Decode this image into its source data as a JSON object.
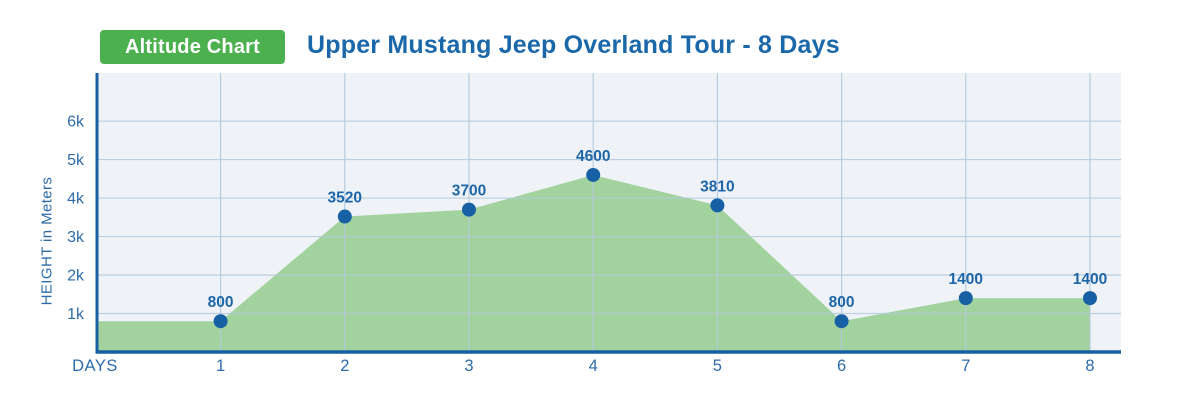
{
  "header": {
    "badge_label": "Altitude Chart",
    "title": "Upper Mustang Jeep Overland Tour - 8 Days"
  },
  "colors": {
    "badge_green": "#4cb04f",
    "title_blue": "#1a67a9",
    "label_blue": "#2d6ca8",
    "axis_blue": "#1760a3",
    "point_blue": "#1760a3",
    "point_label_blue": "#1e66a8",
    "area_green": "#a2d39e",
    "gridline_blue": "#b3c9de",
    "plot_bg": "#eff3f8"
  },
  "chart_data": {
    "type": "area",
    "x": [
      1,
      2,
      3,
      4,
      5,
      6,
      7,
      8
    ],
    "values": [
      800,
      3520,
      3700,
      4600,
      3810,
      800,
      1400,
      1400
    ],
    "point_labels": [
      "800",
      "3520",
      "3700",
      "4600",
      "3810",
      "800",
      "1400",
      "1400"
    ],
    "start_value": 800,
    "xlabel": "DAYS",
    "ylabel": "HEIGHT in Meters",
    "yticks": [
      1000,
      2000,
      3000,
      4000,
      5000,
      6000
    ],
    "ytick_labels": [
      "1k",
      "2k",
      "3k",
      "4k",
      "5k",
      "6k"
    ],
    "ylim": [
      0,
      7250
    ],
    "xlim": [
      0,
      8.25
    ],
    "grid": true,
    "legend": "none",
    "title": "Upper Mustang Jeep Overland Tour - 8 Days"
  }
}
